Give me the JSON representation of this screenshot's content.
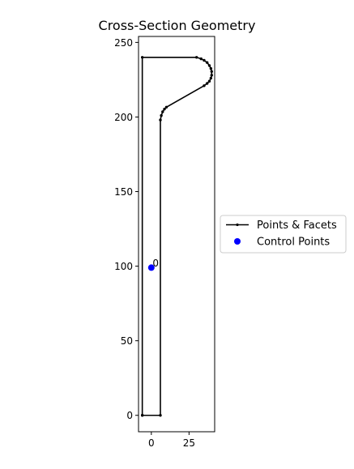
{
  "chart_data": {
    "type": "line",
    "title": "Cross-Section Geometry",
    "xlabel": "",
    "ylabel": "",
    "xlim": [
      -8.5,
      42
    ],
    "ylim": [
      -11,
      254
    ],
    "xticks": [
      0,
      25
    ],
    "yticks": [
      0,
      50,
      100,
      150,
      200,
      250
    ],
    "grid": false,
    "legend_position": "center-right-outside",
    "series": [
      {
        "name": "Points & Facets",
        "color": "#000000",
        "points": [
          [
            -6,
            0
          ],
          [
            6,
            0
          ],
          [
            6,
            198
          ],
          [
            6.6,
            201
          ],
          [
            7.5,
            203.5
          ],
          [
            8.7,
            205.3
          ],
          [
            10,
            206.6
          ],
          [
            35,
            221
          ],
          [
            37,
            222.5
          ],
          [
            38.5,
            224
          ],
          [
            39.5,
            226
          ],
          [
            40,
            228
          ],
          [
            40,
            230.5
          ],
          [
            39.5,
            232.5
          ],
          [
            38.5,
            234.5
          ],
          [
            37,
            236.5
          ],
          [
            35,
            238
          ],
          [
            33,
            239
          ],
          [
            30,
            240
          ],
          [
            -6,
            240
          ],
          [
            -6,
            0
          ]
        ]
      }
    ],
    "control_points": {
      "name": "Control Points",
      "color": "#0000ff",
      "points": [
        {
          "x": 0,
          "y": 99,
          "label": "0"
        }
      ]
    }
  }
}
